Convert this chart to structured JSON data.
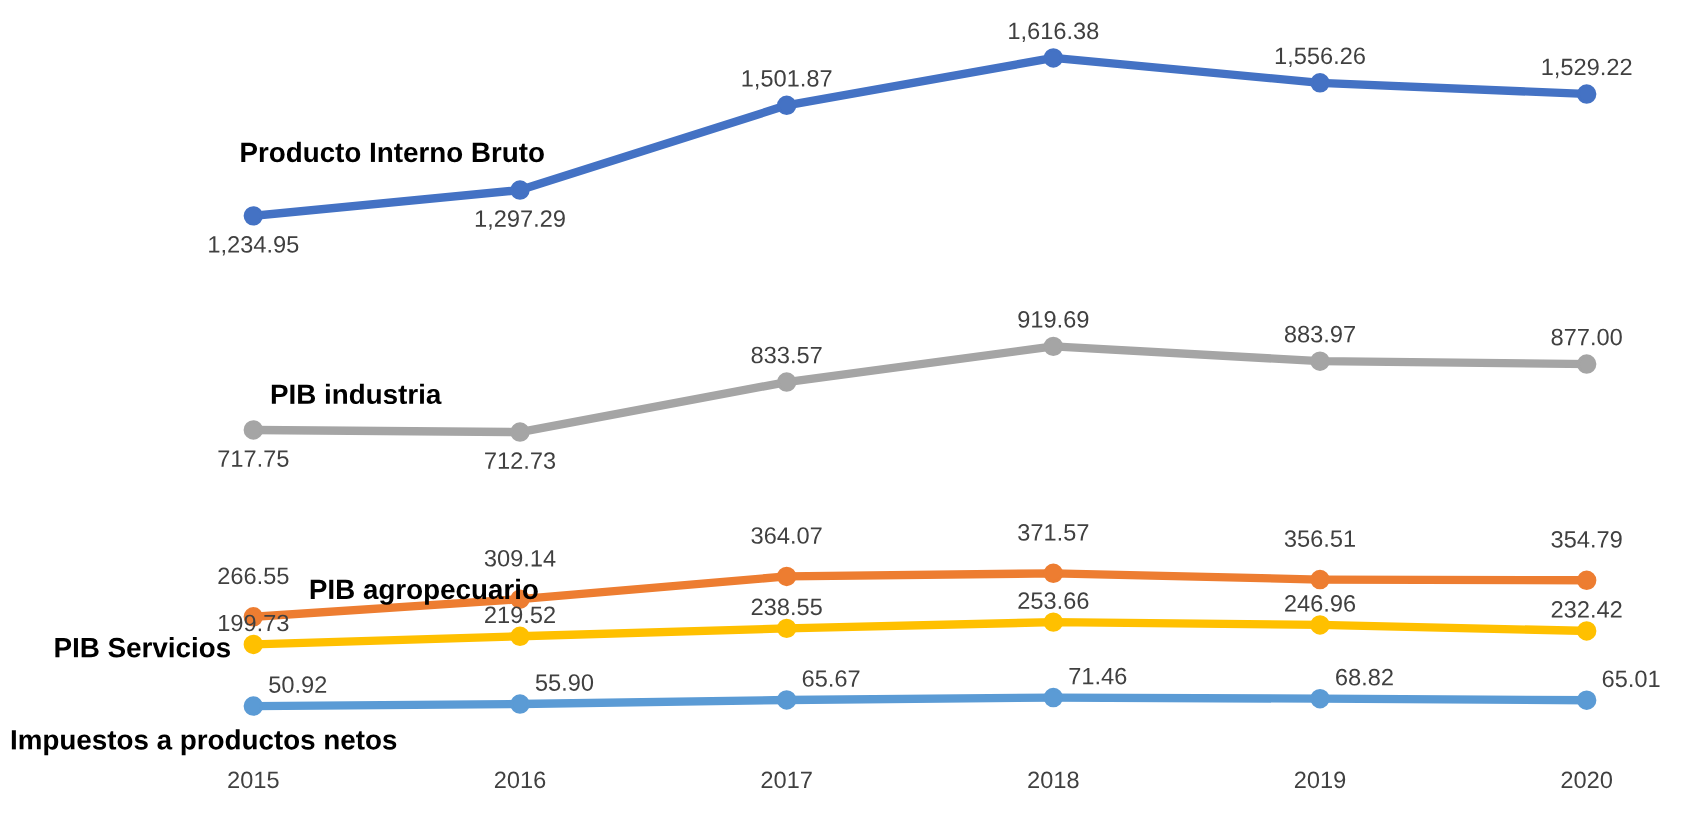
{
  "chart_data": {
    "type": "line",
    "categories": [
      "2015",
      "2016",
      "2017",
      "2018",
      "2019",
      "2020"
    ],
    "series": [
      {
        "name": "Producto Interno Bruto",
        "color": "#4472c4",
        "values": [
          1234.95,
          1297.29,
          1501.87,
          1616.38,
          1556.26,
          1529.22
        ],
        "value_labels": [
          "1,234.95",
          "1,297.29",
          "1,501.87",
          "1,616.38",
          "1,556.26",
          "1,529.22"
        ]
      },
      {
        "name": "PIB industria",
        "color": "#a5a5a5",
        "values": [
          717.75,
          712.73,
          833.57,
          919.69,
          883.97,
          877.0
        ],
        "value_labels": [
          "717.75",
          "712.73",
          "833.57",
          "919.69",
          "883.97",
          "877.00"
        ]
      },
      {
        "name": "PIB agropecuario",
        "color": "#ed7d31",
        "values": [
          266.55,
          309.14,
          364.07,
          371.57,
          356.51,
          354.79
        ],
        "value_labels": [
          "266.55",
          "309.14",
          "364.07",
          "371.57",
          "356.51",
          "354.79"
        ]
      },
      {
        "name": "PIB Servicios",
        "color": "#ffc000",
        "values": [
          199.73,
          219.52,
          238.55,
          253.66,
          246.96,
          232.42
        ],
        "value_labels": [
          "199.73",
          "219.52",
          "238.55",
          "253.66",
          "246.96",
          "232.42"
        ]
      },
      {
        "name": "Impuestos a productos netos",
        "color": "#5b9bd5",
        "values": [
          50.92,
          55.9,
          65.67,
          71.46,
          68.82,
          65.01
        ],
        "value_labels": [
          "50.92",
          "55.90",
          "65.67",
          "71.46",
          "68.82",
          "65.01"
        ]
      }
    ],
    "tick_labels": "x",
    "marker": "circle",
    "line_style": "solid",
    "grid": false,
    "legend": false
  }
}
